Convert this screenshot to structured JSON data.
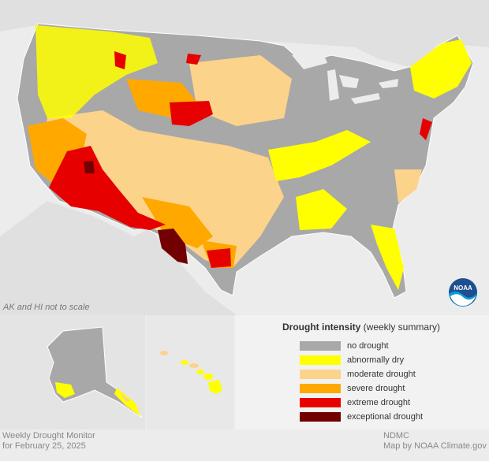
{
  "map": {
    "scale_note": "AK and HI not to scale",
    "logo_text": "NOAA",
    "colors": {
      "water": "#ececec",
      "no_drought": "#a8a8a8",
      "abnormally_dry": "#ffff00",
      "moderate_drought": "#fcd38a",
      "severe_drought": "#ffa800",
      "extreme_drought": "#e60000",
      "exceptional_drought": "#730000",
      "border": "#ffffff"
    }
  },
  "legend": {
    "title_bold": "Drought intensity",
    "title_rest": " (weekly summary)",
    "items": [
      {
        "label": "no drought",
        "color": "#a8a8a8"
      },
      {
        "label": "abnormally dry",
        "color": "#ffff00"
      },
      {
        "label": "moderate drought",
        "color": "#fcd38a"
      },
      {
        "label": "severe drought",
        "color": "#ffa800"
      },
      {
        "label": "extreme drought",
        "color": "#e60000"
      },
      {
        "label": "exceptional drought",
        "color": "#730000"
      }
    ]
  },
  "footer": {
    "left_line1": "Weekly Drought Monitor",
    "left_line2": "for February 25, 2025",
    "right_line1": "NDMC",
    "right_line2": "Map by NOAA Climate.gov"
  }
}
